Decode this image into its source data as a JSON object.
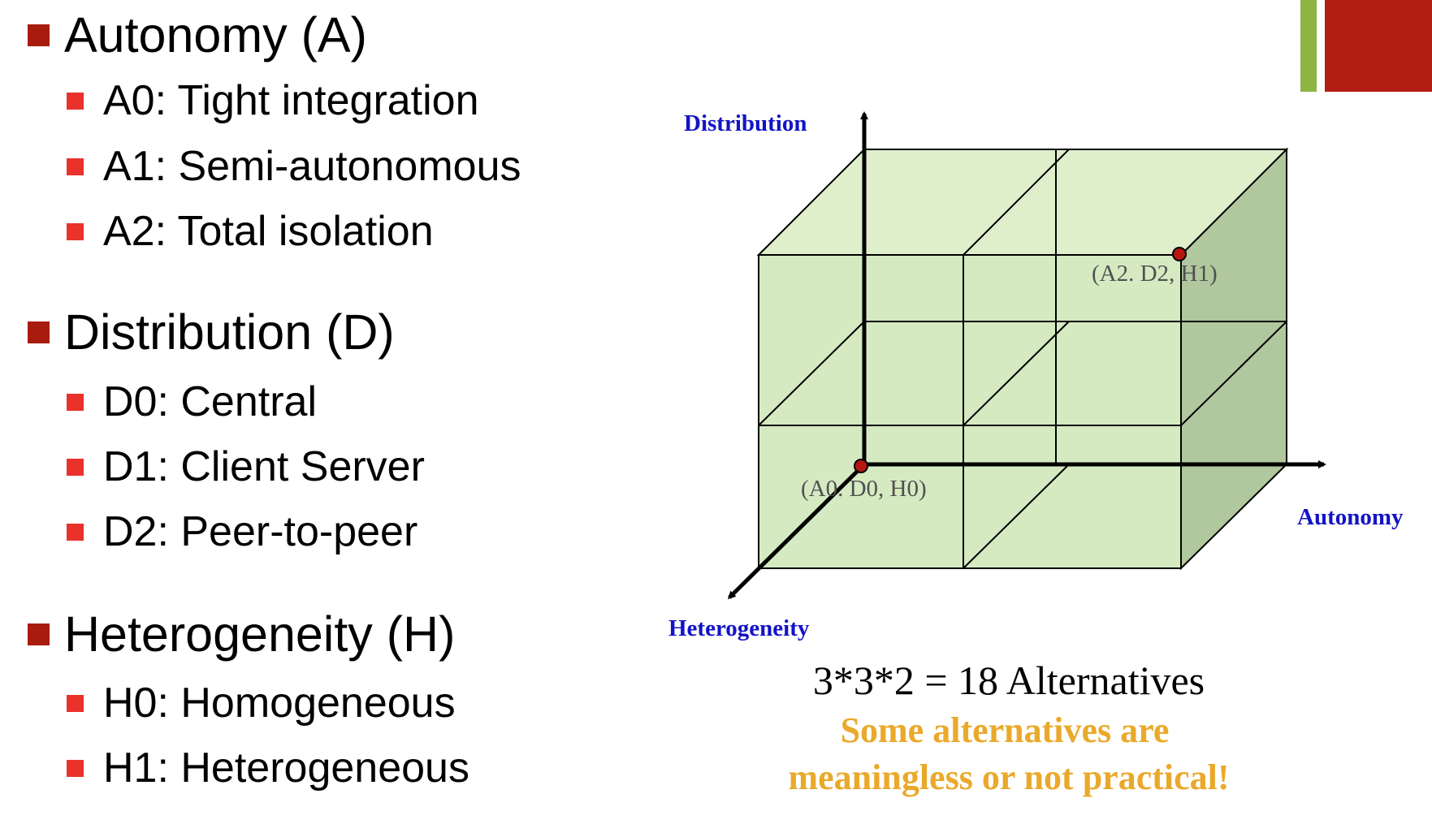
{
  "outline": {
    "autonomy": {
      "heading": "Autonomy (A)",
      "items": [
        "A0: Tight integration",
        "A1: Semi-autonomous",
        "A2: Total isolation"
      ]
    },
    "distribution": {
      "heading": "Distribution (D)",
      "items": [
        "D0: Central",
        "D1: Client Server",
        "D2: Peer-to-peer"
      ]
    },
    "heterogeneity": {
      "heading": "Heterogeneity (H)",
      "items": [
        "H0: Homogeneous",
        "H1: Heterogeneous"
      ]
    }
  },
  "diagram": {
    "axis_labels": {
      "distribution": "Distribution",
      "autonomy": "Autonomy",
      "heterogeneity": "Heterogeneity"
    },
    "points": {
      "origin": "(A0. D0, H0)",
      "corner": "(A2. D2, H1)"
    },
    "formula": "3*3*2 = 18 Alternatives",
    "note_line1": "Some alternatives are",
    "note_line2": "meaningless or not practical!"
  },
  "colors": {
    "heading_bullet": "#a81b0f",
    "sub_bullet": "#e8322b",
    "corner_green": "#8db544",
    "corner_red": "#b31c10",
    "cube_front": "#d6eac2",
    "cube_top": "#dfeecb",
    "cube_side": "#b1c79e",
    "axis_label": "#1313c7",
    "note": "#eaa92a",
    "point": "#b51612"
  }
}
